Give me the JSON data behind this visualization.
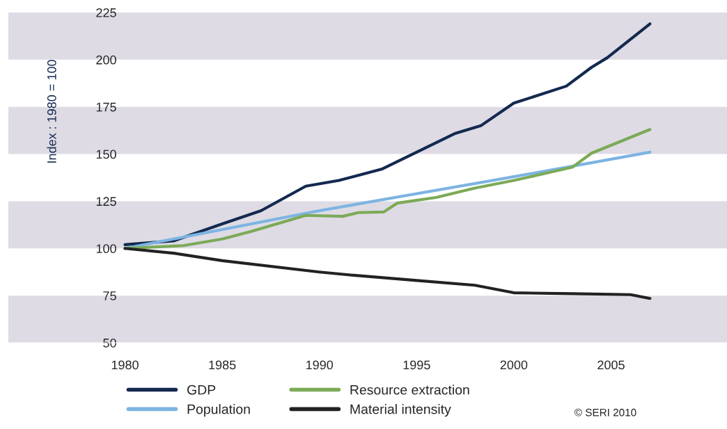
{
  "chart_data": {
    "type": "line",
    "ylabel": "Index : 1980 = 100",
    "series": [
      {
        "name": "GDP",
        "color": "#13294f",
        "x": [
          1980,
          1982.5,
          1985,
          1987,
          1989.3,
          1991,
          1993.2,
          1995,
          1997,
          1998.3,
          2000,
          2002.7,
          2004,
          2004.8,
          2007
        ],
        "values": [
          102,
          104,
          113,
          120,
          133,
          136,
          142,
          151,
          161,
          165,
          177,
          186,
          196,
          201,
          219
        ]
      },
      {
        "name": "Population",
        "color": "#7db4e2",
        "x": [
          1980,
          1983,
          1990,
          2000,
          2007
        ],
        "values": [
          100,
          106,
          120,
          138,
          151
        ]
      },
      {
        "name": "Resource extraction",
        "color": "#7caa57",
        "x": [
          1980,
          1983,
          1985,
          1986.5,
          1989.3,
          1991.2,
          1992,
          1993.3,
          1994,
          1996,
          1998,
          2000,
          2003,
          2004,
          2007
        ],
        "values": [
          100,
          101.5,
          105,
          109,
          117.5,
          117,
          119,
          119.3,
          124,
          127,
          132,
          136,
          143,
          150.5,
          163
        ]
      },
      {
        "name": "Material intensity",
        "color": "#222222",
        "x": [
          1980,
          1982.5,
          1985,
          1990,
          1991.5,
          1995,
          1998,
          2000,
          2003,
          2006,
          2007
        ],
        "values": [
          100,
          97.5,
          93.5,
          87.5,
          86,
          83,
          80.5,
          76.5,
          76,
          75.5,
          73.5
        ]
      }
    ],
    "xlim": [
      1974,
      2011
    ],
    "ylim": [
      50,
      225
    ],
    "xticks": [
      1980,
      1985,
      1990,
      1995,
      2000,
      2005
    ],
    "yticks": [
      50,
      75,
      100,
      125,
      150,
      175,
      200,
      225
    ],
    "bands": [
      {
        "axis": "y",
        "from": 50,
        "to": 75,
        "color": "#dedbe5"
      },
      {
        "axis": "y",
        "from": 100,
        "to": 125,
        "color": "#dedbe5"
      },
      {
        "axis": "y",
        "from": 150,
        "to": 175,
        "color": "#dedbe5"
      },
      {
        "axis": "y",
        "from": 200,
        "to": 225,
        "color": "#dedbe5"
      }
    ],
    "grid": false,
    "legend": "bottom",
    "marker": "none",
    "line_style": "solid",
    "annotations": [
      "© SERI 2010"
    ]
  }
}
